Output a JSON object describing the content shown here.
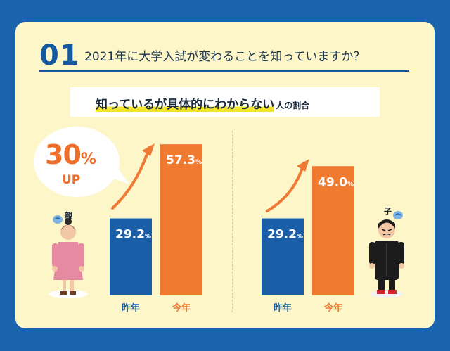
{
  "header": {
    "number": "01",
    "question": "2021年に大学入試が変わることを知っていますか？"
  },
  "subtitle": {
    "highlight": "知っているが具体的にわからない",
    "rest": "人の割合"
  },
  "callout": {
    "percent_value": "30",
    "percent_sign": "%",
    "up": "UP"
  },
  "characters": {
    "parent_label": "親",
    "child_label": "子"
  },
  "colors": {
    "background": "#1a63ad",
    "panel": "#fdf6c8",
    "last_year": "#1a5ea8",
    "this_year": "#f07a30",
    "arrow": "#ee7a35"
  },
  "chart_data": [
    {
      "type": "bar",
      "group": "親",
      "categories": [
        "昨年",
        "今年"
      ],
      "values": [
        29.2,
        57.3
      ],
      "value_labels": [
        "29.2",
        "57.3"
      ],
      "unit": "%",
      "ylim": [
        0,
        60
      ]
    },
    {
      "type": "bar",
      "group": "子",
      "categories": [
        "昨年",
        "今年"
      ],
      "values": [
        29.2,
        49.0
      ],
      "value_labels": [
        "29.2",
        "49.0"
      ],
      "unit": "%",
      "ylim": [
        0,
        60
      ]
    }
  ]
}
